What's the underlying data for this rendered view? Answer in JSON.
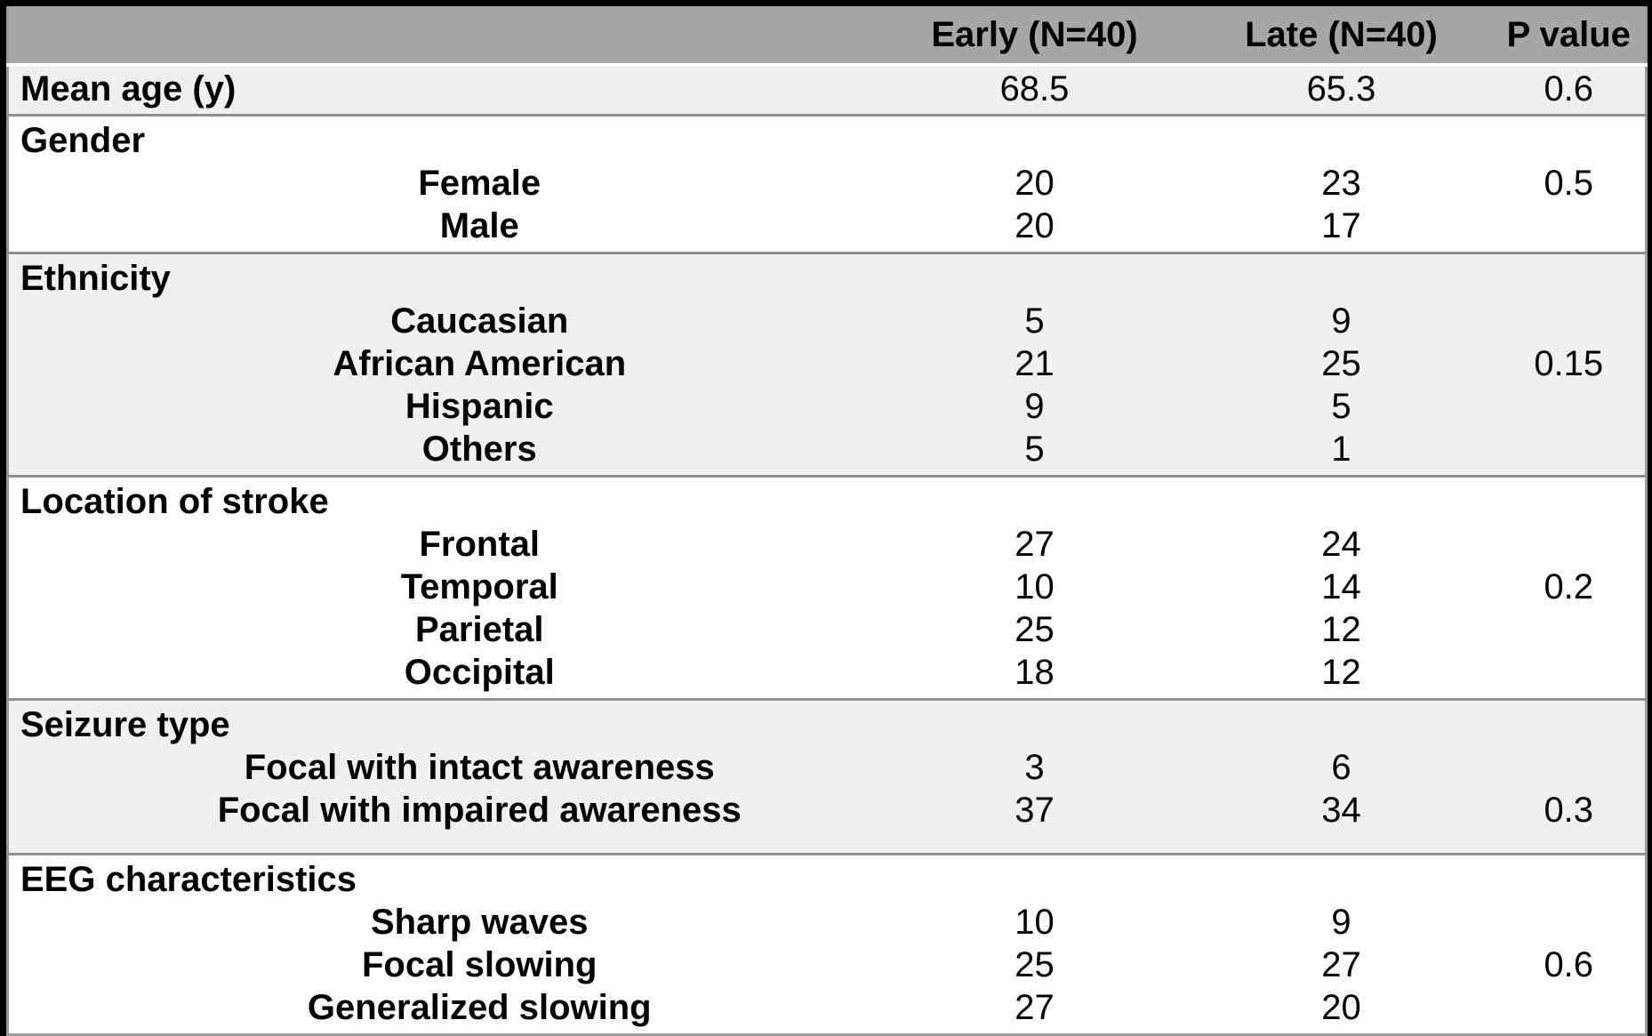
{
  "table": {
    "columns": [
      "",
      "Early (N=40)",
      "Late (N=40)",
      "P value"
    ],
    "colors": {
      "header_bg": "#a6a6a6",
      "band_bg": "#f0f0f0",
      "row_bg": "#ffffff",
      "separator": "#8f8f8f",
      "surround": "#000000",
      "text": "#000000"
    },
    "sections": [
      {
        "label": "Mean age (y)",
        "rows": [
          {
            "label": "Mean age (y)",
            "early": "68.5",
            "late": "65.3",
            "p": "0.6"
          }
        ]
      },
      {
        "label": "Gender",
        "rows": [
          {
            "label": "Female",
            "early": "20",
            "late": "23",
            "p": "0.5"
          },
          {
            "label": "Male",
            "early": "20",
            "late": "17",
            "p": ""
          }
        ]
      },
      {
        "label": "Ethnicity",
        "rows": [
          {
            "label": "Caucasian",
            "early": "5",
            "late": "9",
            "p": ""
          },
          {
            "label": "African American",
            "early": "21",
            "late": "25",
            "p": "0.15"
          },
          {
            "label": "Hispanic",
            "early": "9",
            "late": "5",
            "p": ""
          },
          {
            "label": "Others",
            "early": "5",
            "late": "1",
            "p": ""
          }
        ]
      },
      {
        "label": "Location of stroke",
        "rows": [
          {
            "label": "Frontal",
            "early": "27",
            "late": "24",
            "p": ""
          },
          {
            "label": "Temporal",
            "early": "10",
            "late": "14",
            "p": "0.2"
          },
          {
            "label": "Parietal",
            "early": "25",
            "late": "12",
            "p": ""
          },
          {
            "label": "Occipital",
            "early": "18",
            "late": "12",
            "p": ""
          }
        ]
      },
      {
        "label": "Seizure type",
        "rows": [
          {
            "label": "Focal with intact awareness",
            "early": "3",
            "late": "6",
            "p": ""
          },
          {
            "label": "Focal with impaired awareness",
            "early": "37",
            "late": "34",
            "p": "0.3"
          }
        ]
      },
      {
        "label": "EEG characteristics",
        "rows": [
          {
            "label": "Sharp waves",
            "early": "10",
            "late": "9",
            "p": ""
          },
          {
            "label": "Focal slowing",
            "early": "25",
            "late": "27",
            "p": "0.6"
          },
          {
            "label": "Generalized slowing",
            "early": "27",
            "late": "20",
            "p": ""
          }
        ]
      }
    ]
  },
  "chart_data": {
    "type": "table",
    "columns": [
      "",
      "Early (N=40)",
      "Late (N=40)",
      "P value"
    ],
    "rows": [
      [
        "Mean age (y)",
        "68.5",
        "65.3",
        "0.6"
      ],
      [
        "Gender",
        "",
        "",
        ""
      ],
      [
        "Female",
        "20",
        "23",
        "0.5"
      ],
      [
        "Male",
        "20",
        "17",
        ""
      ],
      [
        "Ethnicity",
        "",
        "",
        ""
      ],
      [
        "Caucasian",
        "5",
        "9",
        ""
      ],
      [
        "African American",
        "21",
        "25",
        "0.15"
      ],
      [
        "Hispanic",
        "9",
        "5",
        ""
      ],
      [
        "Others",
        "5",
        "1",
        ""
      ],
      [
        "Location of stroke",
        "",
        "",
        ""
      ],
      [
        "Frontal",
        "27",
        "24",
        ""
      ],
      [
        "Temporal",
        "10",
        "14",
        "0.2"
      ],
      [
        "Parietal",
        "25",
        "12",
        ""
      ],
      [
        "Occipital",
        "18",
        "12",
        ""
      ],
      [
        "Seizure type",
        "",
        "",
        ""
      ],
      [
        "Focal with intact awareness",
        "3",
        "6",
        ""
      ],
      [
        "Focal with impaired awareness",
        "37",
        "34",
        "0.3"
      ],
      [
        "EEG characteristics",
        "",
        "",
        ""
      ],
      [
        "Sharp waves",
        "10",
        "9",
        ""
      ],
      [
        "Focal slowing",
        "25",
        "27",
        "0.6"
      ],
      [
        "Generalized slowing",
        "27",
        "20",
        ""
      ]
    ]
  }
}
